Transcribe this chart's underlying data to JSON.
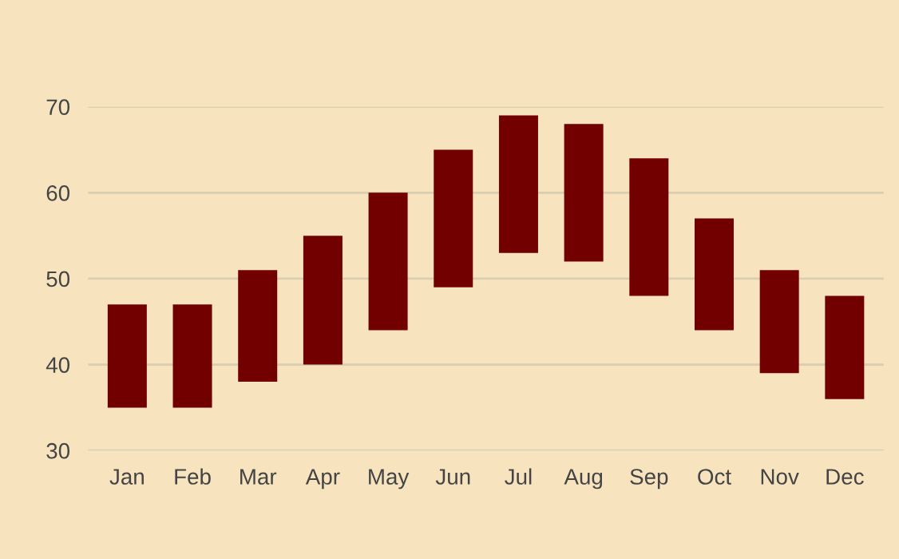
{
  "chart_data": {
    "type": "bar",
    "categories": [
      "Jan",
      "Feb",
      "Mar",
      "Apr",
      "May",
      "Jun",
      "Jul",
      "Aug",
      "Sep",
      "Oct",
      "Nov",
      "Dec"
    ],
    "base": [
      35,
      35,
      38,
      40,
      44,
      49,
      53,
      52,
      48,
      44,
      39,
      36
    ],
    "values": [
      12,
      12,
      13,
      15,
      16,
      16,
      16,
      16,
      16,
      13,
      12,
      12
    ],
    "color": "#730000",
    "ylim": [
      30,
      70
    ],
    "yticks": [
      30,
      40,
      50,
      60,
      70
    ],
    "grid": "y"
  }
}
